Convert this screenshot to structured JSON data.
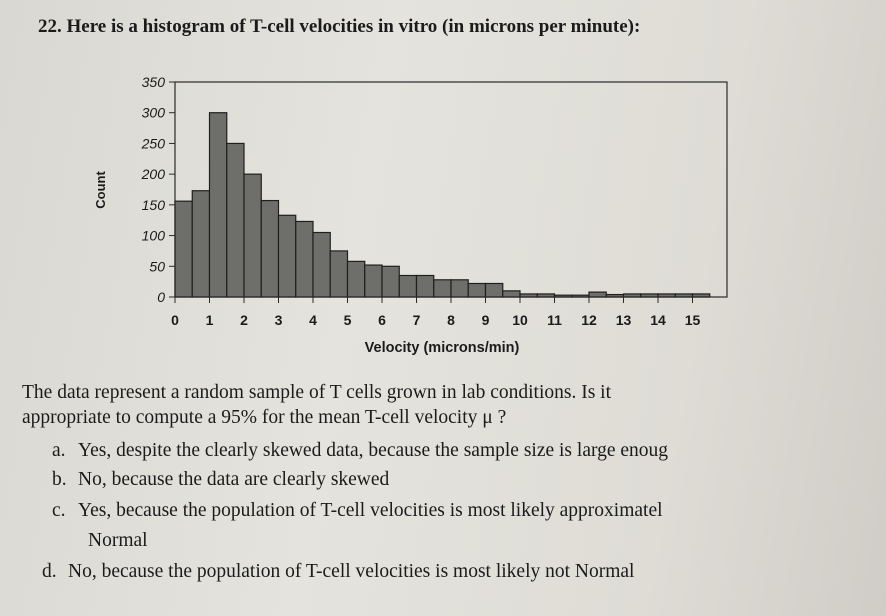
{
  "question": {
    "title": "22. Here is a histogram of T-cell velocities in vitro (in microns per minute):",
    "prompt_line1": "The data represent a random sample of T cells grown in lab conditions. Is it",
    "prompt_line2": "appropriate to compute a 95% for the mean T-cell velocity  μ ?",
    "options": [
      {
        "letter": "a.",
        "text": "Yes, despite the clearly skewed data, because the sample size is large enoug"
      },
      {
        "letter": "b.",
        "text": "No, because the data are clearly skewed"
      },
      {
        "letter": "c.",
        "text": "Yes, because the population of T-cell velocities is most likely approximatel"
      },
      {
        "letter": "",
        "text": "Normal"
      },
      {
        "letter": "d.",
        "text": "No, because the population of T-cell velocities is most likely not Normal"
      }
    ]
  },
  "chart_data": {
    "type": "bar",
    "title": "",
    "xlabel": "Velocity (microns/min)",
    "ylabel": "Count",
    "xlim": [
      0,
      16
    ],
    "ylim": [
      0,
      350
    ],
    "xticks": [
      "0",
      "1",
      "2",
      "3",
      "4",
      "5",
      "6",
      "7",
      "8",
      "9",
      "10",
      "11",
      "12",
      "13",
      "14",
      "15"
    ],
    "yticks": [
      "0",
      "50",
      "100",
      "150",
      "200",
      "250",
      "300",
      "350"
    ],
    "bin_width": 0.5,
    "bins": [
      {
        "start": 0.0,
        "count": 156
      },
      {
        "start": 0.5,
        "count": 173
      },
      {
        "start": 1.0,
        "count": 300
      },
      {
        "start": 1.5,
        "count": 250
      },
      {
        "start": 2.0,
        "count": 200
      },
      {
        "start": 2.5,
        "count": 157
      },
      {
        "start": 3.0,
        "count": 133
      },
      {
        "start": 3.5,
        "count": 123
      },
      {
        "start": 4.0,
        "count": 105
      },
      {
        "start": 4.5,
        "count": 75
      },
      {
        "start": 5.0,
        "count": 58
      },
      {
        "start": 5.5,
        "count": 52
      },
      {
        "start": 6.0,
        "count": 50
      },
      {
        "start": 6.5,
        "count": 35
      },
      {
        "start": 7.0,
        "count": 35
      },
      {
        "start": 7.5,
        "count": 28
      },
      {
        "start": 8.0,
        "count": 28
      },
      {
        "start": 8.5,
        "count": 22
      },
      {
        "start": 9.0,
        "count": 22
      },
      {
        "start": 9.5,
        "count": 10
      },
      {
        "start": 10.0,
        "count": 5
      },
      {
        "start": 10.5,
        "count": 5
      },
      {
        "start": 11.0,
        "count": 3
      },
      {
        "start": 11.5,
        "count": 3
      },
      {
        "start": 12.0,
        "count": 8
      },
      {
        "start": 12.5,
        "count": 4
      },
      {
        "start": 13.0,
        "count": 5
      },
      {
        "start": 13.5,
        "count": 5
      },
      {
        "start": 14.0,
        "count": 5
      },
      {
        "start": 14.5,
        "count": 5
      },
      {
        "start": 15.0,
        "count": 5
      }
    ]
  }
}
